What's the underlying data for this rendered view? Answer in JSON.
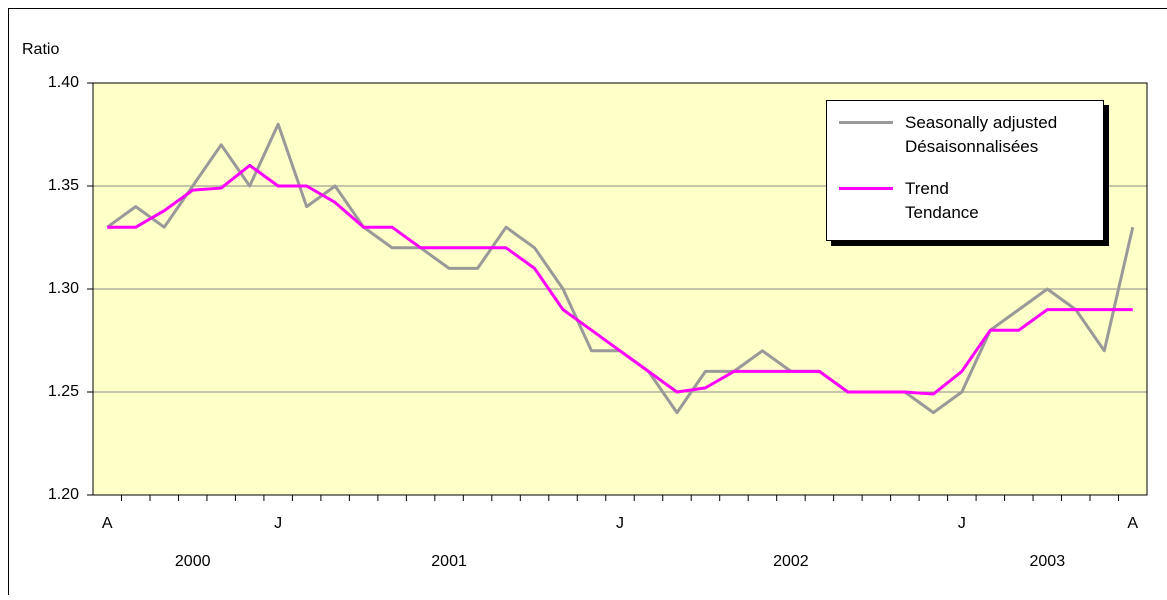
{
  "chart_data": {
    "type": "line",
    "y_label": "Ratio",
    "categories": [
      "A",
      null,
      null,
      null,
      null,
      null,
      "J",
      null,
      null,
      null,
      null,
      null,
      null,
      null,
      null,
      null,
      null,
      null,
      "J",
      null,
      null,
      null,
      null,
      null,
      null,
      null,
      null,
      null,
      null,
      null,
      "J",
      null,
      null,
      null,
      null,
      null,
      "A"
    ],
    "year_labels": [
      "2000",
      "2001",
      "2002",
      "2003"
    ],
    "series": [
      {
        "name": "Seasonally adjusted\nDésaisonnalisées",
        "color": "#999999",
        "values": [
          1.33,
          1.34,
          1.33,
          1.35,
          1.37,
          1.35,
          1.38,
          1.34,
          1.35,
          1.33,
          1.32,
          1.32,
          1.31,
          1.31,
          1.33,
          1.32,
          1.3,
          1.27,
          1.27,
          1.26,
          1.24,
          1.26,
          1.26,
          1.27,
          1.26,
          1.26,
          1.25,
          1.25,
          1.25,
          1.24,
          1.25,
          1.28,
          1.29,
          1.3,
          1.29,
          1.27,
          1.33
        ]
      },
      {
        "name": "Trend\nTendance",
        "color": "#ff00ff",
        "values": [
          1.33,
          1.33,
          1.338,
          1.348,
          1.349,
          1.36,
          1.35,
          1.35,
          1.342,
          1.33,
          1.33,
          1.32,
          1.32,
          1.32,
          1.32,
          1.31,
          1.29,
          1.28,
          1.27,
          1.26,
          1.25,
          1.252,
          1.26,
          1.26,
          1.26,
          1.26,
          1.25,
          1.25,
          1.25,
          1.249,
          1.26,
          1.28,
          1.28,
          1.29,
          1.29,
          1.29,
          1.29
        ]
      }
    ],
    "ylim": [
      1.2,
      1.4
    ],
    "yticks": [
      {
        "value": 1.2,
        "label": "1.20"
      },
      {
        "value": 1.25,
        "label": "1.25"
      },
      {
        "value": 1.3,
        "label": "1.30"
      },
      {
        "value": 1.35,
        "label": "1.35"
      },
      {
        "value": 1.4,
        "label": "1.40"
      }
    ],
    "grid": true,
    "background": "#ffffc8"
  }
}
